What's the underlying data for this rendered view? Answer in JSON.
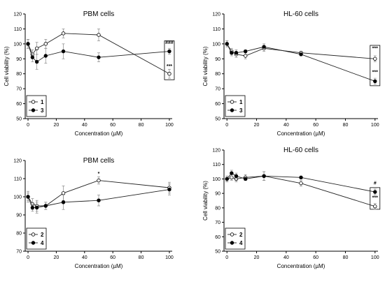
{
  "chart_data": [
    {
      "type": "line",
      "title": "PBM cells",
      "xlabel": "Concentration (µM)",
      "ylabel": "Cell viability (%)",
      "xlim": [
        -2,
        102
      ],
      "ylim": [
        50,
        120
      ],
      "xticks": [
        "0",
        "20",
        "40",
        "60",
        "80",
        "100"
      ],
      "yticks": [
        "50",
        "60",
        "70",
        "80",
        "90",
        "100",
        "110",
        "120"
      ],
      "grid": false,
      "legend_position": "bottom-left",
      "series": [
        {
          "name": "1",
          "marker": "open-circle",
          "x": [
            0,
            3.13,
            6.25,
            12.5,
            25,
            50,
            100
          ],
          "y": [
            100,
            93,
            97,
            100,
            107,
            106,
            80
          ],
          "err": [
            3,
            3,
            4,
            3,
            3,
            4,
            3
          ]
        },
        {
          "name": "3",
          "marker": "filled-circle",
          "x": [
            0,
            3.13,
            6.25,
            12.5,
            25,
            50,
            100
          ],
          "y": [
            100,
            91,
            88,
            92,
            95,
            91,
            95
          ],
          "err": [
            3,
            3,
            5,
            5,
            5,
            3,
            2
          ]
        }
      ],
      "annotations": [
        {
          "text": "###",
          "x": 100,
          "y": 100
        },
        {
          "text": "***",
          "x": 100,
          "y": 84
        }
      ],
      "highlight_box": {
        "x": 100,
        "y": [
          76,
          102
        ]
      }
    },
    {
      "type": "line",
      "title": "HL-60 cells",
      "xlabel": "Concentration (µM)",
      "ylabel": "Cell viability (%)",
      "xlim": [
        -2,
        102
      ],
      "ylim": [
        50,
        120
      ],
      "xticks": [
        "0",
        "20",
        "40",
        "60",
        "80",
        "100"
      ],
      "yticks": [
        "50",
        "60",
        "70",
        "80",
        "90",
        "100",
        "110",
        "120"
      ],
      "grid": false,
      "legend_position": "bottom-left",
      "series": [
        {
          "name": "1",
          "marker": "open-circle",
          "x": [
            0,
            3.13,
            6.25,
            12.5,
            25,
            50,
            100
          ],
          "y": [
            100,
            95,
            93,
            92,
            97,
            94,
            90
          ],
          "err": [
            2,
            2,
            2,
            2,
            2,
            1,
            2
          ]
        },
        {
          "name": "3",
          "marker": "filled-circle",
          "x": [
            0,
            3.13,
            6.25,
            12.5,
            25,
            50,
            100
          ],
          "y": [
            100,
            94,
            94,
            95,
            98,
            93,
            75
          ],
          "err": [
            2,
            2,
            2,
            1,
            2,
            1,
            2
          ]
        }
      ],
      "annotations": [
        {
          "text": "***",
          "x": 100,
          "y": 96
        },
        {
          "text": "***",
          "x": 100,
          "y": 80
        }
      ],
      "highlight_box": {
        "x": 100,
        "y": [
          72,
          99
        ]
      }
    },
    {
      "type": "line",
      "title": "PBM cells",
      "xlabel": "Concentration (µM)",
      "ylabel": "",
      "xlim": [
        -2,
        102
      ],
      "ylim": [
        70,
        120
      ],
      "xticks": [
        "0",
        "20",
        "40",
        "60",
        "80",
        "100"
      ],
      "yticks": [
        "70",
        "80",
        "90",
        "100",
        "110",
        "120"
      ],
      "grid": false,
      "legend_position": "bottom-left",
      "series": [
        {
          "name": "2",
          "marker": "open-circle",
          "x": [
            0,
            3.13,
            6.25,
            12.5,
            25,
            50,
            100
          ],
          "y": [
            100,
            96,
            95,
            95,
            102,
            109,
            105
          ],
          "err": [
            3,
            3,
            3,
            2,
            4,
            2,
            3
          ]
        },
        {
          "name": "4",
          "marker": "filled-circle",
          "x": [
            0,
            3.13,
            6.25,
            12.5,
            25,
            50,
            100
          ],
          "y": [
            100,
            94,
            94,
            95,
            97,
            98,
            104
          ],
          "err": [
            2,
            2,
            3,
            2,
            4,
            3,
            3
          ]
        }
      ],
      "annotations": [
        {
          "text": "*",
          "x": 50,
          "y": 112
        }
      ]
    },
    {
      "type": "line",
      "title": "HL-60 cells",
      "xlabel": "Concentration (µM)",
      "ylabel": "Cell viability (%)",
      "xlim": [
        -2,
        102
      ],
      "ylim": [
        50,
        120
      ],
      "xticks": [
        "0",
        "20",
        "40",
        "60",
        "80",
        "100"
      ],
      "yticks": [
        "50",
        "60",
        "70",
        "80",
        "90",
        "100",
        "110",
        "120"
      ],
      "grid": false,
      "legend_position": "bottom-left",
      "series": [
        {
          "name": "2",
          "marker": "open-circle",
          "x": [
            0,
            3.13,
            6.25,
            12.5,
            25,
            50,
            100
          ],
          "y": [
            100,
            101,
            100,
            101,
            102,
            97,
            81
          ],
          "err": [
            2,
            2,
            2,
            2,
            3,
            2,
            2
          ]
        },
        {
          "name": "4",
          "marker": "filled-circle",
          "x": [
            0,
            3.13,
            6.25,
            12.5,
            25,
            50,
            100
          ],
          "y": [
            100,
            104,
            102,
            100,
            102,
            101,
            91
          ],
          "err": [
            2,
            2,
            2,
            1,
            3,
            1,
            2
          ]
        }
      ],
      "annotations": [
        {
          "text": "#",
          "x": 100,
          "y": 96
        },
        {
          "text": "***",
          "x": 100,
          "y": 86
        }
      ],
      "highlight_box": {
        "x": 100,
        "y": [
          79,
          94
        ]
      }
    }
  ]
}
